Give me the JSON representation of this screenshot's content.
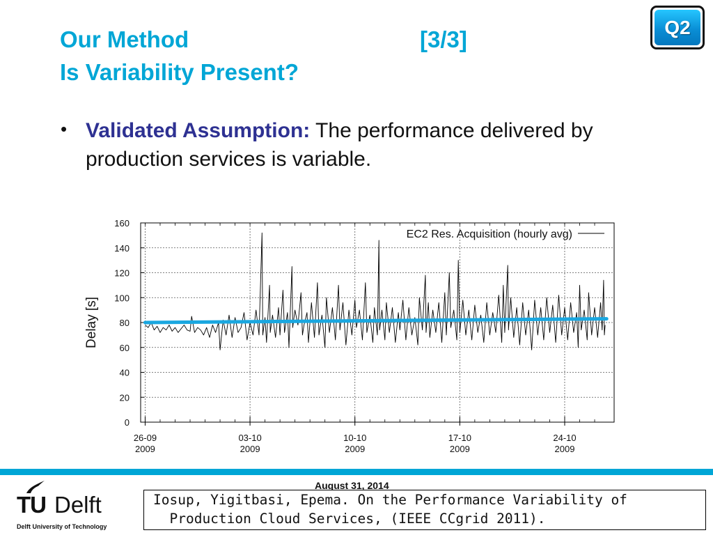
{
  "slide": {
    "title_line1": "Our Method",
    "title_page": "[3/3]",
    "title_line2": "Is Variability Present?",
    "badge": "Q2",
    "bullet": {
      "lead": "Validated Assumption:",
      "rest": " The performance delivered by production services is variable."
    }
  },
  "chart_data": {
    "type": "line",
    "ylabel": "Delay [s]",
    "ylim": [
      0,
      160
    ],
    "yticks": [
      0,
      20,
      40,
      60,
      80,
      100,
      120,
      140,
      160
    ],
    "x_ticks": [
      {
        "day": 0,
        "label_date": "26-09",
        "label_year": "2009"
      },
      {
        "day": 7,
        "label_date": "03-10",
        "label_year": "2009"
      },
      {
        "day": 14,
        "label_date": "10-10",
        "label_year": "2009"
      },
      {
        "day": 21,
        "label_date": "17-10",
        "label_year": "2009"
      },
      {
        "day": 28,
        "label_date": "24-10",
        "label_year": "2009"
      }
    ],
    "legend": {
      "label": "EC2 Res. Acquisition (hourly avg)",
      "position": "top-right"
    },
    "grid": true,
    "trend": {
      "start": 80,
      "end": 83,
      "color": "#1aa7e0"
    },
    "series": [
      {
        "name": "EC2 Res. Acquisition (hourly avg)",
        "points": [
          [
            0.0,
            78
          ],
          [
            0.2,
            76
          ],
          [
            0.4,
            80
          ],
          [
            0.6,
            74
          ],
          [
            0.8,
            77
          ],
          [
            1.0,
            72
          ],
          [
            1.2,
            76
          ],
          [
            1.4,
            74
          ],
          [
            1.6,
            78
          ],
          [
            1.8,
            73
          ],
          [
            2.0,
            76
          ],
          [
            2.2,
            72
          ],
          [
            2.4,
            75
          ],
          [
            2.6,
            78
          ],
          [
            2.8,
            74
          ],
          [
            3.0,
            73
          ],
          [
            3.1,
            85
          ],
          [
            3.3,
            72
          ],
          [
            3.5,
            76
          ],
          [
            3.7,
            74
          ],
          [
            3.9,
            70
          ],
          [
            4.1,
            76
          ],
          [
            4.3,
            68
          ],
          [
            4.5,
            78
          ],
          [
            4.7,
            72
          ],
          [
            4.9,
            80
          ],
          [
            5.0,
            58
          ],
          [
            5.2,
            82
          ],
          [
            5.4,
            70
          ],
          [
            5.6,
            86
          ],
          [
            5.8,
            68
          ],
          [
            6.0,
            84
          ],
          [
            6.2,
            72
          ],
          [
            6.4,
            76
          ],
          [
            6.6,
            88
          ],
          [
            6.8,
            66
          ],
          [
            7.0,
            80
          ],
          [
            7.2,
            70
          ],
          [
            7.4,
            90
          ],
          [
            7.6,
            70
          ],
          [
            7.8,
            152
          ],
          [
            7.85,
            70
          ],
          [
            8.0,
            84
          ],
          [
            8.1,
            64
          ],
          [
            8.3,
            110
          ],
          [
            8.35,
            72
          ],
          [
            8.5,
            86
          ],
          [
            8.7,
            68
          ],
          [
            8.9,
            92
          ],
          [
            9.0,
            70
          ],
          [
            9.2,
            106
          ],
          [
            9.3,
            72
          ],
          [
            9.5,
            88
          ],
          [
            9.6,
            60
          ],
          [
            9.8,
            125
          ],
          [
            9.85,
            76
          ],
          [
            10.0,
            90
          ],
          [
            10.2,
            78
          ],
          [
            10.4,
            104
          ],
          [
            10.5,
            70
          ],
          [
            10.6,
            78
          ],
          [
            10.8,
            88
          ],
          [
            10.9,
            64
          ],
          [
            11.1,
            96
          ],
          [
            11.3,
            68
          ],
          [
            11.5,
            112
          ],
          [
            11.6,
            70
          ],
          [
            11.8,
            86
          ],
          [
            12.0,
            60
          ],
          [
            12.1,
            100
          ],
          [
            12.3,
            72
          ],
          [
            12.5,
            92
          ],
          [
            12.7,
            66
          ],
          [
            12.9,
            110
          ],
          [
            13.0,
            74
          ],
          [
            13.2,
            96
          ],
          [
            13.4,
            62
          ],
          [
            13.6,
            90
          ],
          [
            13.8,
            70
          ],
          [
            14.0,
            98
          ],
          [
            14.1,
            76
          ],
          [
            14.3,
            90
          ],
          [
            14.5,
            66
          ],
          [
            14.7,
            112
          ],
          [
            14.8,
            72
          ],
          [
            15.0,
            86
          ],
          [
            15.2,
            64
          ],
          [
            15.3,
            92
          ],
          [
            15.5,
            70
          ],
          [
            15.6,
            146
          ],
          [
            15.65,
            74
          ],
          [
            15.8,
            90
          ],
          [
            16.0,
            66
          ],
          [
            16.1,
            96
          ],
          [
            16.3,
            72
          ],
          [
            16.5,
            92
          ],
          [
            16.7,
            64
          ],
          [
            16.9,
            88
          ],
          [
            17.0,
            74
          ],
          [
            17.2,
            98
          ],
          [
            17.4,
            66
          ],
          [
            17.6,
            92
          ],
          [
            17.8,
            70
          ],
          [
            18.0,
            84
          ],
          [
            18.2,
            62
          ],
          [
            18.3,
            100
          ],
          [
            18.5,
            74
          ],
          [
            18.7,
            118
          ],
          [
            18.75,
            72
          ],
          [
            18.9,
            96
          ],
          [
            19.0,
            68
          ],
          [
            19.2,
            90
          ],
          [
            19.4,
            72
          ],
          [
            19.6,
            96
          ],
          [
            19.8,
            64
          ],
          [
            20.0,
            104
          ],
          [
            20.1,
            70
          ],
          [
            20.3,
            120
          ],
          [
            20.4,
            76
          ],
          [
            20.6,
            90
          ],
          [
            20.8,
            66
          ],
          [
            20.9,
            130
          ],
          [
            21.0,
            72
          ],
          [
            21.2,
            98
          ],
          [
            21.4,
            70
          ],
          [
            21.6,
            90
          ],
          [
            21.8,
            66
          ],
          [
            22.0,
            94
          ],
          [
            22.2,
            72
          ],
          [
            22.4,
            86
          ],
          [
            22.6,
            64
          ],
          [
            22.8,
            96
          ],
          [
            23.0,
            70
          ],
          [
            23.2,
            88
          ],
          [
            23.4,
            72
          ],
          [
            23.6,
            102
          ],
          [
            23.8,
            64
          ],
          [
            23.9,
            110
          ],
          [
            24.0,
            72
          ],
          [
            24.2,
            126
          ],
          [
            24.25,
            74
          ],
          [
            24.4,
            100
          ],
          [
            24.6,
            68
          ],
          [
            24.8,
            92
          ],
          [
            25.0,
            62
          ],
          [
            25.2,
            96
          ],
          [
            25.4,
            70
          ],
          [
            25.6,
            90
          ],
          [
            25.8,
            58
          ],
          [
            26.0,
            98
          ],
          [
            26.2,
            70
          ],
          [
            26.4,
            92
          ],
          [
            26.6,
            66
          ],
          [
            26.8,
            100
          ],
          [
            27.0,
            72
          ],
          [
            27.2,
            94
          ],
          [
            27.4,
            64
          ],
          [
            27.6,
            102
          ],
          [
            27.8,
            70
          ],
          [
            28.0,
            92
          ],
          [
            28.2,
            66
          ],
          [
            28.4,
            96
          ],
          [
            28.6,
            72
          ],
          [
            28.8,
            88
          ],
          [
            28.9,
            60
          ],
          [
            29.0,
            110
          ],
          [
            29.1,
            74
          ],
          [
            29.3,
            90
          ],
          [
            29.5,
            66
          ],
          [
            29.6,
            104
          ],
          [
            29.8,
            70
          ],
          [
            30.0,
            92
          ],
          [
            30.2,
            68
          ],
          [
            30.4,
            96
          ],
          [
            30.5,
            74
          ],
          [
            30.6,
            114
          ],
          [
            30.65,
            70
          ],
          [
            30.7,
            78
          ]
        ]
      }
    ]
  }
}
